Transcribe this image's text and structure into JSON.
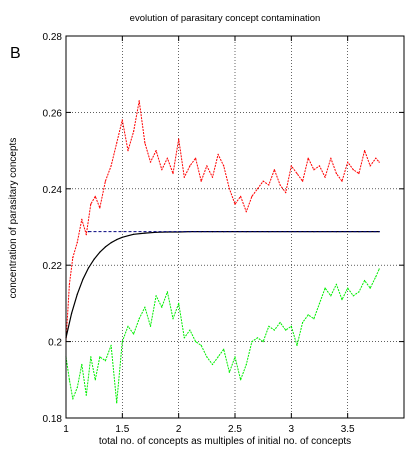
{
  "chart_data": {
    "type": "line",
    "panel_label": "B",
    "title": "evolution of parasitary concept contamination",
    "xlabel": "total no. of concepts as multiples of initial no. of concepts",
    "ylabel": "concentration of parasitary concepts",
    "xlim": [
      1,
      4
    ],
    "ylim": [
      0.18,
      0.28
    ],
    "xticks": [
      1,
      1.5,
      2,
      2.5,
      3,
      3.5
    ],
    "xtick_labels": [
      "1",
      "1.5",
      "2",
      "2.5",
      "3",
      "3.5"
    ],
    "yticks": [
      0.18,
      0.2,
      0.22,
      0.24,
      0.26,
      0.28
    ],
    "ytick_labels": [
      "0.18",
      "0.2",
      "0.22",
      "0.24",
      "0.26",
      "0.28"
    ],
    "grid": true,
    "series": [
      {
        "color": "#ff0000",
        "style": "dotted",
        "x": [
          1.0,
          1.03,
          1.06,
          1.1,
          1.14,
          1.18,
          1.22,
          1.26,
          1.3,
          1.35,
          1.4,
          1.45,
          1.5,
          1.55,
          1.6,
          1.65,
          1.7,
          1.75,
          1.8,
          1.85,
          1.9,
          1.95,
          2.0,
          2.05,
          2.1,
          2.15,
          2.2,
          2.25,
          2.3,
          2.35,
          2.4,
          2.45,
          2.5,
          2.55,
          2.6,
          2.65,
          2.7,
          2.75,
          2.8,
          2.85,
          2.9,
          2.95,
          3.0,
          3.05,
          3.1,
          3.15,
          3.2,
          3.25,
          3.3,
          3.35,
          3.4,
          3.45,
          3.5,
          3.55,
          3.6,
          3.65,
          3.7,
          3.75,
          3.78
        ],
        "y": [
          0.2,
          0.215,
          0.222,
          0.226,
          0.232,
          0.228,
          0.236,
          0.238,
          0.235,
          0.242,
          0.246,
          0.252,
          0.258,
          0.25,
          0.255,
          0.263,
          0.252,
          0.247,
          0.25,
          0.245,
          0.248,
          0.244,
          0.253,
          0.243,
          0.246,
          0.248,
          0.242,
          0.246,
          0.243,
          0.249,
          0.246,
          0.24,
          0.236,
          0.238,
          0.234,
          0.238,
          0.24,
          0.242,
          0.241,
          0.245,
          0.241,
          0.239,
          0.246,
          0.244,
          0.242,
          0.248,
          0.245,
          0.246,
          0.243,
          0.248,
          0.244,
          0.242,
          0.247,
          0.245,
          0.244,
          0.25,
          0.246,
          0.248,
          0.247
        ]
      },
      {
        "color": "#00ee00",
        "style": "dotted",
        "x": [
          1.0,
          1.03,
          1.06,
          1.1,
          1.14,
          1.18,
          1.22,
          1.26,
          1.3,
          1.35,
          1.4,
          1.45,
          1.5,
          1.55,
          1.6,
          1.65,
          1.7,
          1.75,
          1.8,
          1.85,
          1.9,
          1.95,
          2.0,
          2.05,
          2.1,
          2.15,
          2.2,
          2.25,
          2.3,
          2.35,
          2.4,
          2.45,
          2.5,
          2.55,
          2.6,
          2.65,
          2.7,
          2.75,
          2.8,
          2.85,
          2.9,
          2.95,
          3.0,
          3.05,
          3.1,
          3.15,
          3.2,
          3.25,
          3.3,
          3.35,
          3.4,
          3.45,
          3.5,
          3.55,
          3.6,
          3.65,
          3.7,
          3.75,
          3.78
        ],
        "y": [
          0.196,
          0.19,
          0.185,
          0.188,
          0.194,
          0.186,
          0.196,
          0.19,
          0.196,
          0.195,
          0.199,
          0.184,
          0.2,
          0.204,
          0.202,
          0.206,
          0.209,
          0.204,
          0.212,
          0.209,
          0.213,
          0.206,
          0.21,
          0.201,
          0.203,
          0.2,
          0.199,
          0.196,
          0.194,
          0.196,
          0.198,
          0.192,
          0.196,
          0.19,
          0.194,
          0.2,
          0.201,
          0.2,
          0.204,
          0.203,
          0.205,
          0.203,
          0.204,
          0.199,
          0.205,
          0.207,
          0.206,
          0.21,
          0.214,
          0.212,
          0.215,
          0.211,
          0.214,
          0.212,
          0.213,
          0.216,
          0.214,
          0.217,
          0.219
        ]
      },
      {
        "color": "#000000",
        "style": "solid",
        "x": [
          1.0,
          1.05,
          1.1,
          1.15,
          1.2,
          1.25,
          1.3,
          1.35,
          1.4,
          1.45,
          1.5,
          1.6,
          1.7,
          1.8,
          1.9,
          2.0,
          2.1,
          2.2,
          2.3,
          2.4,
          2.6,
          2.8,
          3.0,
          3.2,
          3.4,
          3.6,
          3.78
        ],
        "y": [
          0.201,
          0.2074,
          0.2124,
          0.2163,
          0.2193,
          0.2216,
          0.2234,
          0.2248,
          0.2259,
          0.2267,
          0.2273,
          0.2281,
          0.2284,
          0.2286,
          0.2287,
          0.2287,
          0.2288,
          0.2288,
          0.2288,
          0.2288,
          0.2288,
          0.2288,
          0.2288,
          0.2288,
          0.2288,
          0.2288,
          0.2288
        ]
      },
      {
        "color": "#00007f",
        "style": "dashed",
        "x": [
          1.2,
          3.78
        ],
        "y": [
          0.2288,
          0.2288
        ]
      }
    ]
  }
}
